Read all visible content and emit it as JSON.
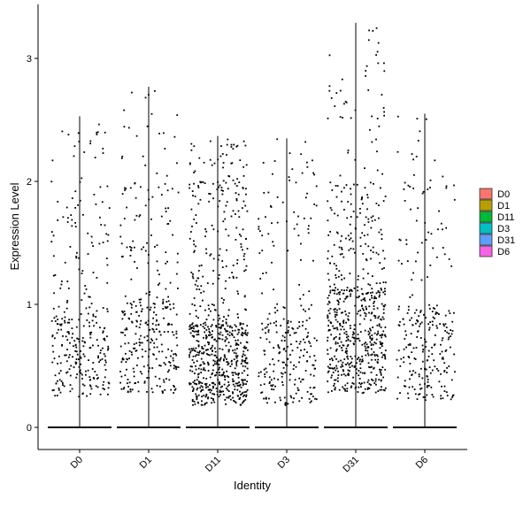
{
  "chart_data": {
    "type": "scatter",
    "subtype": "violin-jitter",
    "title": "",
    "xlabel": "Identity",
    "ylabel": "Expression Level",
    "ylim": [
      -0.18,
      3.32
    ],
    "yticks": [
      0,
      1,
      2,
      3
    ],
    "categories": [
      "D0",
      "D1",
      "D11",
      "D3",
      "D31",
      "D6"
    ],
    "grid": false,
    "legend": {
      "placement": "right",
      "entries": [
        {
          "label": "D0",
          "color": "#F8766D"
        },
        {
          "label": "D1",
          "color": "#B79F00"
        },
        {
          "label": "D11",
          "color": "#00BA38"
        },
        {
          "label": "D3",
          "color": "#00BFC4"
        },
        {
          "label": "D31",
          "color": "#619CFF"
        },
        {
          "label": "D6",
          "color": "#F564E3"
        }
      ]
    },
    "series": [
      {
        "category": "D0",
        "max": 2.53,
        "n_nonzero": 300,
        "dense_low": 0.25,
        "dense_high": 0.95
      },
      {
        "category": "D1",
        "max": 2.77,
        "n_nonzero": 330,
        "dense_low": 0.28,
        "dense_high": 1.05
      },
      {
        "category": "D11",
        "max": 2.37,
        "n_nonzero": 700,
        "dense_low": 0.18,
        "dense_high": 0.85
      },
      {
        "category": "D3",
        "max": 2.35,
        "n_nonzero": 260,
        "dense_low": 0.18,
        "dense_high": 0.9
      },
      {
        "category": "D31",
        "max": 3.29,
        "n_nonzero": 650,
        "dense_low": 0.28,
        "dense_high": 1.15
      },
      {
        "category": "D6",
        "max": 2.55,
        "n_nonzero": 260,
        "dense_low": 0.22,
        "dense_high": 1.0
      }
    ]
  }
}
